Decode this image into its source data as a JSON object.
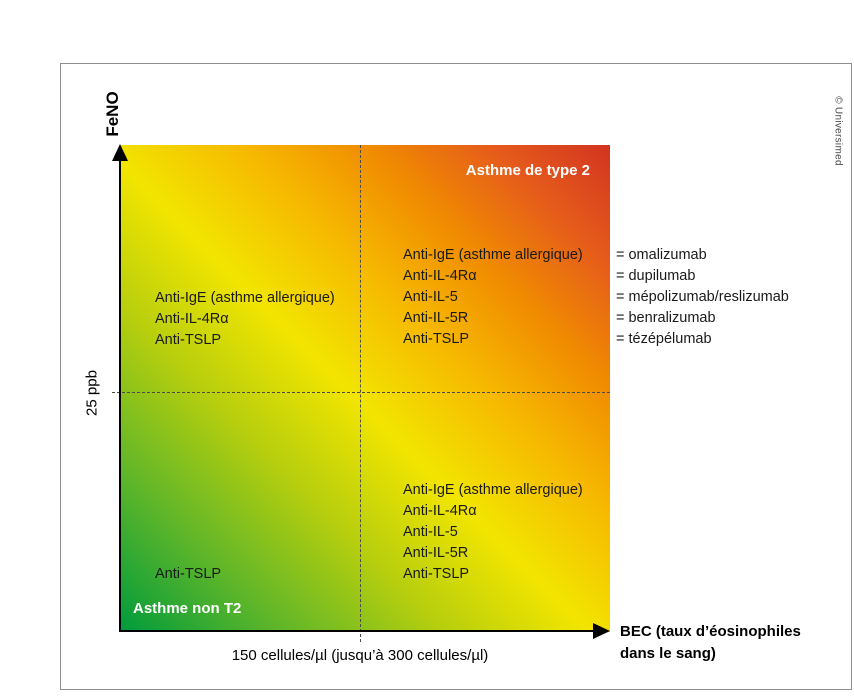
{
  "figure": {
    "copyright": "© Universimed",
    "y_axis": {
      "label": "FeNO",
      "threshold": "25 ppb"
    },
    "x_axis": {
      "threshold": "150 cellules/µl (jusqu’à 300 cellules/µl)",
      "label_line1": "BEC (taux d’éosinophiles",
      "label_line2": "dans le sang)"
    },
    "quadrants": {
      "top_right_title": "Asthme de type 2",
      "bottom_left_title": "Asthme non T2",
      "top_left_items": [
        "Anti-IgE (asthme allergique)",
        "Anti-IL-4Rα",
        "Anti-TSLP"
      ],
      "top_right_items": [
        "Anti-IgE (asthme allergique)",
        "Anti-IL-4Rα",
        "Anti-IL-5",
        "Anti-IL-5R",
        "Anti-TSLP"
      ],
      "bottom_right_items": [
        "Anti-IgE (asthme allergique)",
        "Anti-IL-4Rα",
        "Anti-IL-5",
        "Anti-IL-5R",
        "Anti-TSLP"
      ],
      "bottom_left_items": [
        "Anti-TSLP"
      ]
    },
    "legend_items": [
      "= omalizumab",
      "= dupilumab",
      "= mépolizumab/reslizumab",
      "= benralizumab",
      "= tézépélumab"
    ],
    "colors": {
      "green": "#009b3c",
      "yellow": "#f2e500",
      "orange": "#f08c00",
      "red": "#d23420",
      "frame_border": "#8e8e8e"
    }
  }
}
